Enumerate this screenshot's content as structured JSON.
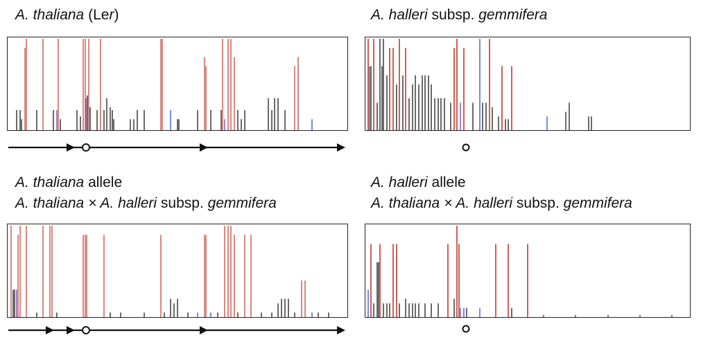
{
  "panels": [
    {
      "title_parts": [
        {
          "t": "A. thaliana",
          "i": true
        },
        {
          "t": " (Le",
          "i": false
        },
        {
          "t": "r",
          "i": true
        },
        {
          "t": ")",
          "i": false
        }
      ],
      "title_lines": 1,
      "chart_data": {
        "type": "bar",
        "title": "A. thaliana (Ler)",
        "ylim": [
          0,
          1
        ],
        "bars": [
          [
            0.02,
            0.22,
            "k"
          ],
          [
            0.03,
            0.22,
            "k"
          ],
          [
            0.035,
            0.12,
            "k"
          ],
          [
            0.045,
            0.9,
            "r"
          ],
          [
            0.05,
            1.0,
            "r"
          ],
          [
            0.08,
            0.22,
            "k"
          ],
          [
            0.1,
            1.0,
            "r"
          ],
          [
            0.13,
            0.22,
            "k"
          ],
          [
            0.14,
            0.22,
            "p"
          ],
          [
            0.145,
            1.0,
            "r"
          ],
          [
            0.15,
            0.12,
            "k"
          ],
          [
            0.2,
            0.22,
            "k"
          ],
          [
            0.21,
            0.15,
            "k"
          ],
          [
            0.22,
            1.0,
            "r"
          ],
          [
            0.225,
            1.0,
            "r"
          ],
          [
            0.228,
            0.35,
            "p"
          ],
          [
            0.232,
            0.38,
            "k"
          ],
          [
            0.236,
            1.0,
            "r"
          ],
          [
            0.24,
            0.25,
            "k"
          ],
          [
            0.26,
            0.22,
            "k"
          ],
          [
            0.27,
            1.0,
            "r"
          ],
          [
            0.28,
            0.22,
            "k"
          ],
          [
            0.29,
            0.35,
            "k"
          ],
          [
            0.3,
            0.25,
            "k"
          ],
          [
            0.305,
            0.22,
            "k"
          ],
          [
            0.31,
            0.12,
            "k"
          ],
          [
            0.36,
            0.12,
            "k"
          ],
          [
            0.37,
            0.12,
            "k"
          ],
          [
            0.38,
            0.22,
            "k"
          ],
          [
            0.4,
            0.22,
            "k"
          ],
          [
            0.45,
            1.0,
            "r"
          ],
          [
            0.455,
            1.0,
            "r"
          ],
          [
            0.48,
            0.22,
            "b"
          ],
          [
            0.5,
            0.12,
            "k"
          ],
          [
            0.505,
            0.12,
            "k"
          ],
          [
            0.56,
            0.22,
            "k"
          ],
          [
            0.58,
            0.8,
            "r"
          ],
          [
            0.585,
            0.7,
            "r"
          ],
          [
            0.6,
            0.22,
            "k"
          ],
          [
            0.63,
            0.22,
            "k"
          ],
          [
            0.635,
            1.0,
            "r"
          ],
          [
            0.64,
            0.12,
            "p"
          ],
          [
            0.65,
            1.0,
            "r"
          ],
          [
            0.66,
            1.0,
            "r"
          ],
          [
            0.67,
            0.8,
            "r"
          ],
          [
            0.68,
            0.22,
            "k"
          ],
          [
            0.69,
            0.12,
            "k"
          ],
          [
            0.7,
            0.22,
            "k"
          ],
          [
            0.77,
            0.35,
            "k"
          ],
          [
            0.78,
            0.22,
            "k"
          ],
          [
            0.79,
            0.35,
            "k"
          ],
          [
            0.8,
            0.35,
            "k"
          ],
          [
            0.82,
            0.22,
            "k"
          ],
          [
            0.85,
            0.7,
            "r"
          ],
          [
            0.86,
            0.8,
            "r"
          ],
          [
            0.9,
            0.12,
            "b"
          ]
        ]
      }
    },
    {
      "title_parts": [
        {
          "t": "A. halleri",
          "i": true
        },
        {
          "t": " subsp. ",
          "i": false
        },
        {
          "t": "gemmifera",
          "i": true
        }
      ],
      "title_lines": 1,
      "chart_data": {
        "type": "bar",
        "title": "A. halleri subsp. gemmifera",
        "ylim": [
          0,
          1
        ],
        "bars": [
          [
            0.003,
            1.0,
            "r"
          ],
          [
            0.006,
            0.7,
            "b"
          ],
          [
            0.01,
            0.7,
            "k"
          ],
          [
            0.02,
            1.0,
            "r"
          ],
          [
            0.03,
            0.3,
            "k"
          ],
          [
            0.04,
            1.0,
            "k"
          ],
          [
            0.045,
            0.7,
            "k"
          ],
          [
            0.05,
            1.0,
            "k"
          ],
          [
            0.06,
            0.6,
            "k"
          ],
          [
            0.07,
            0.9,
            "r"
          ],
          [
            0.08,
            0.9,
            "r"
          ],
          [
            0.09,
            0.5,
            "k"
          ],
          [
            0.1,
            1.0,
            "r"
          ],
          [
            0.11,
            0.6,
            "k"
          ],
          [
            0.12,
            0.9,
            "r"
          ],
          [
            0.13,
            0.35,
            "k"
          ],
          [
            0.14,
            0.5,
            "k"
          ],
          [
            0.15,
            0.6,
            "k"
          ],
          [
            0.16,
            0.5,
            "k"
          ],
          [
            0.17,
            0.6,
            "k"
          ],
          [
            0.18,
            0.6,
            "k"
          ],
          [
            0.19,
            0.6,
            "k"
          ],
          [
            0.2,
            0.5,
            "k"
          ],
          [
            0.21,
            0.35,
            "k"
          ],
          [
            0.22,
            0.35,
            "k"
          ],
          [
            0.23,
            0.35,
            "k"
          ],
          [
            0.24,
            0.35,
            "k"
          ],
          [
            0.26,
            0.3,
            "k"
          ],
          [
            0.27,
            0.9,
            "r"
          ],
          [
            0.28,
            1.0,
            "r"
          ],
          [
            0.29,
            0.3,
            "p"
          ],
          [
            0.3,
            0.9,
            "r"
          ],
          [
            0.33,
            0.3,
            "k"
          ],
          [
            0.35,
            1.0,
            "b"
          ],
          [
            0.36,
            0.3,
            "k"
          ],
          [
            0.37,
            0.3,
            "k"
          ],
          [
            0.38,
            1.0,
            "r"
          ],
          [
            0.39,
            0.25,
            "k"
          ],
          [
            0.41,
            0.15,
            "k"
          ],
          [
            0.42,
            0.7,
            "r"
          ],
          [
            0.43,
            0.12,
            "k"
          ],
          [
            0.44,
            0.12,
            "k"
          ],
          [
            0.45,
            0.7,
            "r"
          ],
          [
            0.56,
            0.15,
            "b"
          ],
          [
            0.62,
            0.2,
            "k"
          ],
          [
            0.63,
            0.3,
            "k"
          ],
          [
            0.69,
            0.15,
            "k"
          ],
          [
            0.7,
            0.15,
            "k"
          ]
        ]
      }
    },
    {
      "title_parts": [
        {
          "t": "A. thaliana",
          "i": true
        },
        {
          "t": " allele",
          "i": false
        },
        {
          "t": "\n",
          "i": false
        },
        {
          "t": "A. thaliana × A. halleri",
          "i": true
        },
        {
          "t": " subsp. ",
          "i": false
        },
        {
          "t": "gemmifera",
          "i": true
        }
      ],
      "title_lines": 2,
      "chart_data": {
        "type": "bar",
        "title": "A. thaliana allele — A. thaliana × A. halleri subsp. gemmifera",
        "ylim": [
          0,
          1
        ],
        "bars": [
          [
            0.005,
            1.0,
            "r"
          ],
          [
            0.01,
            0.3,
            "k"
          ],
          [
            0.015,
            0.3,
            "k"
          ],
          [
            0.02,
            0.3,
            "p"
          ],
          [
            0.025,
            0.9,
            "r"
          ],
          [
            0.03,
            1.0,
            "r"
          ],
          [
            0.05,
            1.0,
            "r"
          ],
          [
            0.08,
            0.05,
            "k"
          ],
          [
            0.1,
            1.0,
            "r"
          ],
          [
            0.12,
            1.0,
            "r"
          ],
          [
            0.125,
            1.0,
            "r"
          ],
          [
            0.14,
            0.05,
            "k"
          ],
          [
            0.22,
            0.9,
            "r"
          ],
          [
            0.225,
            0.9,
            "r"
          ],
          [
            0.23,
            0.9,
            "r"
          ],
          [
            0.28,
            0.9,
            "r"
          ],
          [
            0.3,
            0.05,
            "k"
          ],
          [
            0.33,
            0.05,
            "k"
          ],
          [
            0.4,
            0.05,
            "k"
          ],
          [
            0.45,
            0.9,
            "r"
          ],
          [
            0.46,
            0.05,
            "k"
          ],
          [
            0.48,
            0.2,
            "k"
          ],
          [
            0.49,
            0.15,
            "k"
          ],
          [
            0.5,
            0.2,
            "k"
          ],
          [
            0.53,
            0.05,
            "k"
          ],
          [
            0.56,
            0.05,
            "b"
          ],
          [
            0.58,
            0.9,
            "r"
          ],
          [
            0.585,
            0.9,
            "r"
          ],
          [
            0.6,
            0.05,
            "b"
          ],
          [
            0.62,
            0.05,
            "k"
          ],
          [
            0.64,
            1.0,
            "r"
          ],
          [
            0.65,
            1.0,
            "r"
          ],
          [
            0.66,
            1.0,
            "r"
          ],
          [
            0.67,
            0.9,
            "r"
          ],
          [
            0.68,
            0.05,
            "k"
          ],
          [
            0.7,
            0.9,
            "r"
          ],
          [
            0.72,
            0.9,
            "r"
          ],
          [
            0.75,
            0.05,
            "k"
          ],
          [
            0.78,
            0.05,
            "k"
          ],
          [
            0.8,
            0.15,
            "k"
          ],
          [
            0.81,
            0.2,
            "k"
          ],
          [
            0.82,
            0.2,
            "k"
          ],
          [
            0.83,
            0.2,
            "k"
          ],
          [
            0.85,
            0.05,
            "k"
          ],
          [
            0.87,
            0.4,
            "r"
          ],
          [
            0.88,
            0.4,
            "r"
          ],
          [
            0.9,
            0.05,
            "b"
          ],
          [
            0.92,
            0.05,
            "k"
          ],
          [
            0.95,
            0.05,
            "k"
          ]
        ]
      }
    },
    {
      "title_parts": [
        {
          "t": "A. halleri",
          "i": true
        },
        {
          "t": " allele",
          "i": false
        },
        {
          "t": "\n",
          "i": false
        },
        {
          "t": "A. thaliana × A. halleri",
          "i": true
        },
        {
          "t": " subsp. ",
          "i": false
        },
        {
          "t": "gemmifera",
          "i": true
        }
      ],
      "title_lines": 2,
      "chart_data": {
        "type": "bar",
        "title": "A. halleri allele — A. thaliana × A. halleri subsp. gemmifera",
        "ylim": [
          0,
          1
        ],
        "bars": [
          [
            0.003,
            0.3,
            "b"
          ],
          [
            0.01,
            0.8,
            "r"
          ],
          [
            0.02,
            0.15,
            "k"
          ],
          [
            0.03,
            0.6,
            "k"
          ],
          [
            0.035,
            0.6,
            "k"
          ],
          [
            0.04,
            0.8,
            "r"
          ],
          [
            0.05,
            0.15,
            "k"
          ],
          [
            0.06,
            0.15,
            "k"
          ],
          [
            0.07,
            0.15,
            "k"
          ],
          [
            0.08,
            0.8,
            "r"
          ],
          [
            0.09,
            0.8,
            "r"
          ],
          [
            0.1,
            0.15,
            "k"
          ],
          [
            0.12,
            0.2,
            "k"
          ],
          [
            0.13,
            0.15,
            "k"
          ],
          [
            0.14,
            0.15,
            "k"
          ],
          [
            0.15,
            0.15,
            "k"
          ],
          [
            0.16,
            0.15,
            "k"
          ],
          [
            0.18,
            0.15,
            "k"
          ],
          [
            0.2,
            0.15,
            "k"
          ],
          [
            0.22,
            0.15,
            "k"
          ],
          [
            0.25,
            0.8,
            "r"
          ],
          [
            0.27,
            0.2,
            "k"
          ],
          [
            0.28,
            1.0,
            "r"
          ],
          [
            0.285,
            0.8,
            "r"
          ],
          [
            0.29,
            0.1,
            "p"
          ],
          [
            0.3,
            0.1,
            "b"
          ],
          [
            0.31,
            0.1,
            "k"
          ],
          [
            0.35,
            0.1,
            "b"
          ],
          [
            0.4,
            0.8,
            "r"
          ],
          [
            0.44,
            0.8,
            "r"
          ],
          [
            0.45,
            0.1,
            "k"
          ],
          [
            0.5,
            0.8,
            "r"
          ],
          [
            0.55,
            0.02,
            "k"
          ],
          [
            0.65,
            0.02,
            "k"
          ],
          [
            0.75,
            0.02,
            "k"
          ],
          [
            0.85,
            0.02,
            "k"
          ],
          [
            0.95,
            0.02,
            "k"
          ]
        ]
      }
    }
  ],
  "colors": {
    "k": "#1a1a1a",
    "r": "#c0392b",
    "p": "#7a3fa0",
    "b": "#2a4fc9",
    "frame": "#222222"
  }
}
